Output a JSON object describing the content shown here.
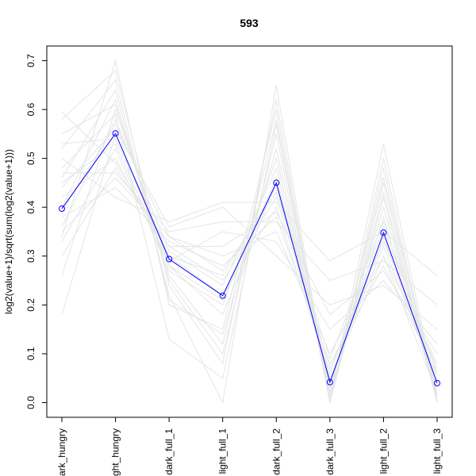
{
  "chart_data": {
    "type": "line",
    "title": "593",
    "xlabel": "",
    "ylabel": "log2(value+1)/sqrt(sum(log2(value+1)))",
    "categories": [
      "dark_hungry",
      "light_hungry",
      "dark_full_1",
      "light_full_1",
      "dark_full_2",
      "dark_full_3",
      "light_full_2",
      "light_full_3"
    ],
    "ylim": [
      -0.03,
      0.73
    ],
    "yticks": [
      0.0,
      0.1,
      0.2,
      0.3,
      0.4,
      0.5,
      0.6,
      0.7
    ],
    "ytick_labels": [
      "0.0",
      "0.1",
      "0.2",
      "0.3",
      "0.4",
      "0.5",
      "0.6",
      "0.7"
    ],
    "grid": false,
    "highlight_series": {
      "color": "#0000ff",
      "values": [
        0.397,
        0.551,
        0.294,
        0.219,
        0.45,
        0.042,
        0.348,
        0.04
      ]
    },
    "background_series_color": "#e5e5e5",
    "background_series": [
      {
        "values": [
          0.18,
          0.55,
          0.3,
          0.22,
          0.4,
          0.05,
          0.3,
          0.02
        ]
      },
      {
        "values": [
          0.26,
          0.6,
          0.28,
          0.18,
          0.45,
          0.04,
          0.34,
          0.03
        ]
      },
      {
        "values": [
          0.3,
          0.48,
          0.32,
          0.25,
          0.42,
          0.06,
          0.36,
          0.05
        ]
      },
      {
        "values": [
          0.33,
          0.52,
          0.27,
          0.2,
          0.5,
          0.02,
          0.38,
          0.01
        ]
      },
      {
        "values": [
          0.34,
          0.7,
          0.2,
          0.15,
          0.6,
          0.0,
          0.42,
          0.0
        ]
      },
      {
        "values": [
          0.35,
          0.46,
          0.34,
          0.3,
          0.35,
          0.1,
          0.3,
          0.08
        ]
      },
      {
        "values": [
          0.36,
          0.58,
          0.31,
          0.24,
          0.48,
          0.03,
          0.4,
          0.02
        ]
      },
      {
        "values": [
          0.38,
          0.44,
          0.33,
          0.28,
          0.38,
          0.08,
          0.28,
          0.06
        ]
      },
      {
        "values": [
          0.4,
          0.62,
          0.25,
          0.1,
          0.55,
          0.0,
          0.45,
          0.0
        ]
      },
      {
        "values": [
          0.42,
          0.5,
          0.29,
          0.35,
          0.33,
          0.15,
          0.25,
          0.12
        ]
      },
      {
        "values": [
          0.44,
          0.56,
          0.36,
          0.4,
          0.3,
          0.2,
          0.24,
          0.15
        ]
      },
      {
        "values": [
          0.46,
          0.64,
          0.22,
          0.0,
          0.65,
          0.0,
          0.5,
          0.0
        ]
      },
      {
        "values": [
          0.47,
          0.47,
          0.35,
          0.37,
          0.37,
          0.25,
          0.29,
          0.2
        ]
      },
      {
        "values": [
          0.48,
          0.59,
          0.13,
          0.05,
          0.57,
          0.01,
          0.53,
          0.01
        ]
      },
      {
        "values": [
          0.5,
          0.42,
          0.37,
          0.41,
          0.41,
          0.29,
          0.35,
          0.26
        ]
      },
      {
        "values": [
          0.52,
          0.66,
          0.21,
          0.14,
          0.52,
          0.02,
          0.46,
          0.02
        ]
      },
      {
        "values": [
          0.53,
          0.54,
          0.3,
          0.26,
          0.44,
          0.07,
          0.33,
          0.07
        ]
      },
      {
        "values": [
          0.55,
          0.61,
          0.26,
          0.12,
          0.58,
          0.01,
          0.43,
          0.01
        ]
      },
      {
        "values": [
          0.58,
          0.68,
          0.24,
          0.08,
          0.62,
          0.0,
          0.48,
          0.0
        ]
      },
      {
        "values": [
          0.595,
          0.49,
          0.32,
          0.32,
          0.39,
          0.18,
          0.27,
          0.1
        ]
      },
      {
        "values": [
          0.45,
          0.53,
          0.28,
          0.21,
          0.46,
          0.05,
          0.32,
          0.04
        ]
      },
      {
        "values": [
          0.39,
          0.57,
          0.34,
          0.27,
          0.43,
          0.09,
          0.37,
          0.06
        ]
      }
    ]
  }
}
